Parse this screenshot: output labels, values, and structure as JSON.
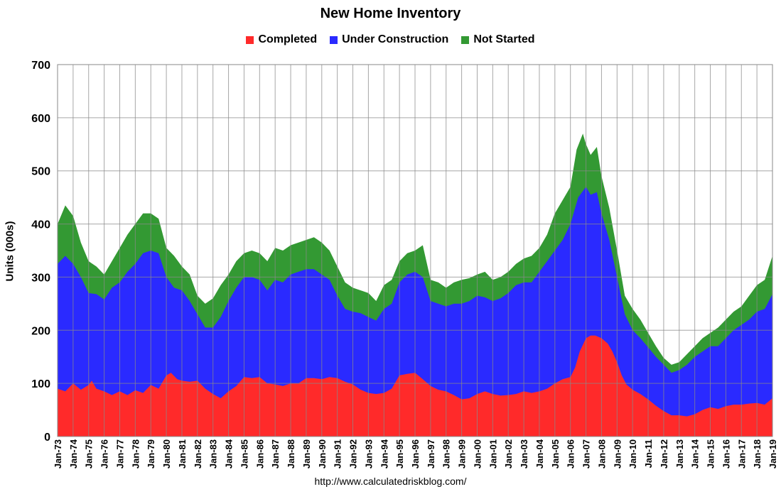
{
  "chart_data": {
    "type": "area",
    "title": "New Home Inventory",
    "ylabel": "Units (000s)",
    "xlabel": "",
    "source": "http://www.calculatedriskblog.com/",
    "ylim": [
      0,
      700
    ],
    "yticks": [
      0,
      100,
      200,
      300,
      400,
      500,
      600,
      700
    ],
    "xlim": [
      1973,
      2019
    ],
    "categories": [
      "Jan-73",
      "Jan-74",
      "Jan-75",
      "Jan-76",
      "Jan-77",
      "Jan-78",
      "Jan-79",
      "Jan-80",
      "Jan-81",
      "Jan-82",
      "Jan-83",
      "Jan-84",
      "Jan-85",
      "Jan-86",
      "Jan-87",
      "Jan-88",
      "Jan-89",
      "Jan-90",
      "Jan-91",
      "Jan-92",
      "Jan-93",
      "Jan-94",
      "Jan-95",
      "Jan-96",
      "Jan-97",
      "Jan-98",
      "Jan-99",
      "Jan-00",
      "Jan-01",
      "Jan-02",
      "Jan-03",
      "Jan-04",
      "Jan-05",
      "Jan-06",
      "Jan-07",
      "Jan-08",
      "Jan-09",
      "Jan-10",
      "Jan-11",
      "Jan-12",
      "Jan-13",
      "Jan-14",
      "Jan-15",
      "Jan-16",
      "Jan-17",
      "Jan-18",
      "Jan-19"
    ],
    "grid": true,
    "legend_position": "top",
    "stacked": true,
    "series": [
      {
        "name": "Completed",
        "color": "#ff2a2a",
        "points": [
          [
            1973.0,
            90
          ],
          [
            1973.5,
            85
          ],
          [
            1974.0,
            100
          ],
          [
            1974.5,
            88
          ],
          [
            1975.0,
            97
          ],
          [
            1975.2,
            105
          ],
          [
            1975.5,
            90
          ],
          [
            1976.0,
            85
          ],
          [
            1976.5,
            78
          ],
          [
            1977.0,
            85
          ],
          [
            1977.5,
            78
          ],
          [
            1978.0,
            87
          ],
          [
            1978.5,
            82
          ],
          [
            1979.0,
            97
          ],
          [
            1979.5,
            90
          ],
          [
            1980.0,
            115
          ],
          [
            1980.3,
            120
          ],
          [
            1980.7,
            108
          ],
          [
            1981.0,
            105
          ],
          [
            1981.5,
            103
          ],
          [
            1982.0,
            105
          ],
          [
            1982.5,
            90
          ],
          [
            1983.0,
            80
          ],
          [
            1983.5,
            72
          ],
          [
            1984.0,
            85
          ],
          [
            1984.5,
            95
          ],
          [
            1985.0,
            112
          ],
          [
            1985.5,
            110
          ],
          [
            1986.0,
            112
          ],
          [
            1986.5,
            100
          ],
          [
            1987.0,
            98
          ],
          [
            1987.5,
            95
          ],
          [
            1988.0,
            100
          ],
          [
            1988.5,
            100
          ],
          [
            1989.0,
            110
          ],
          [
            1989.5,
            110
          ],
          [
            1990.0,
            108
          ],
          [
            1990.5,
            112
          ],
          [
            1991.0,
            110
          ],
          [
            1991.5,
            103
          ],
          [
            1992.0,
            98
          ],
          [
            1992.5,
            88
          ],
          [
            1993.0,
            82
          ],
          [
            1993.5,
            80
          ],
          [
            1994.0,
            82
          ],
          [
            1994.5,
            90
          ],
          [
            1995.0,
            115
          ],
          [
            1995.5,
            118
          ],
          [
            1996.0,
            120
          ],
          [
            1996.5,
            108
          ],
          [
            1997.0,
            95
          ],
          [
            1997.5,
            88
          ],
          [
            1998.0,
            85
          ],
          [
            1998.5,
            78
          ],
          [
            1999.0,
            70
          ],
          [
            1999.5,
            72
          ],
          [
            2000.0,
            80
          ],
          [
            2000.5,
            85
          ],
          [
            2001.0,
            80
          ],
          [
            2001.5,
            77
          ],
          [
            2002.0,
            78
          ],
          [
            2002.5,
            80
          ],
          [
            2003.0,
            85
          ],
          [
            2003.5,
            82
          ],
          [
            2004.0,
            85
          ],
          [
            2004.5,
            90
          ],
          [
            2005.0,
            100
          ],
          [
            2005.5,
            108
          ],
          [
            2006.0,
            112
          ],
          [
            2006.3,
            130
          ],
          [
            2006.6,
            160
          ],
          [
            2007.0,
            185
          ],
          [
            2007.3,
            190
          ],
          [
            2007.6,
            190
          ],
          [
            2008.0,
            185
          ],
          [
            2008.4,
            175
          ],
          [
            2008.7,
            160
          ],
          [
            2009.0,
            140
          ],
          [
            2009.3,
            115
          ],
          [
            2009.6,
            98
          ],
          [
            2010.0,
            88
          ],
          [
            2010.5,
            80
          ],
          [
            2011.0,
            70
          ],
          [
            2011.5,
            58
          ],
          [
            2012.0,
            48
          ],
          [
            2012.5,
            40
          ],
          [
            2013.0,
            40
          ],
          [
            2013.5,
            38
          ],
          [
            2014.0,
            42
          ],
          [
            2014.5,
            50
          ],
          [
            2015.0,
            55
          ],
          [
            2015.5,
            52
          ],
          [
            2016.0,
            57
          ],
          [
            2016.5,
            60
          ],
          [
            2017.0,
            60
          ],
          [
            2017.5,
            62
          ],
          [
            2018.0,
            63
          ],
          [
            2018.5,
            60
          ],
          [
            2019.0,
            72
          ]
        ]
      },
      {
        "name": "Under Construction",
        "color": "#2a2aff",
        "points": [
          [
            1973.0,
            325
          ],
          [
            1973.5,
            340
          ],
          [
            1974.0,
            325
          ],
          [
            1974.5,
            300
          ],
          [
            1975.0,
            270
          ],
          [
            1975.5,
            268
          ],
          [
            1976.0,
            258
          ],
          [
            1976.5,
            280
          ],
          [
            1977.0,
            290
          ],
          [
            1977.5,
            310
          ],
          [
            1978.0,
            325
          ],
          [
            1978.5,
            345
          ],
          [
            1979.0,
            350
          ],
          [
            1979.5,
            345
          ],
          [
            1980.0,
            300
          ],
          [
            1980.5,
            280
          ],
          [
            1981.0,
            275
          ],
          [
            1981.5,
            255
          ],
          [
            1982.0,
            230
          ],
          [
            1982.5,
            205
          ],
          [
            1983.0,
            205
          ],
          [
            1983.5,
            225
          ],
          [
            1984.0,
            255
          ],
          [
            1984.5,
            280
          ],
          [
            1985.0,
            300
          ],
          [
            1985.5,
            300
          ],
          [
            1986.0,
            295
          ],
          [
            1986.5,
            275
          ],
          [
            1987.0,
            295
          ],
          [
            1987.5,
            290
          ],
          [
            1988.0,
            305
          ],
          [
            1988.5,
            310
          ],
          [
            1989.0,
            315
          ],
          [
            1989.5,
            315
          ],
          [
            1990.0,
            305
          ],
          [
            1990.5,
            295
          ],
          [
            1991.0,
            265
          ],
          [
            1991.5,
            240
          ],
          [
            1992.0,
            235
          ],
          [
            1992.5,
            232
          ],
          [
            1993.0,
            225
          ],
          [
            1993.5,
            218
          ],
          [
            1994.0,
            240
          ],
          [
            1994.5,
            250
          ],
          [
            1995.0,
            290
          ],
          [
            1995.5,
            305
          ],
          [
            1996.0,
            310
          ],
          [
            1996.5,
            300
          ],
          [
            1997.0,
            255
          ],
          [
            1997.5,
            250
          ],
          [
            1998.0,
            245
          ],
          [
            1998.5,
            250
          ],
          [
            1999.0,
            250
          ],
          [
            1999.5,
            255
          ],
          [
            2000.0,
            265
          ],
          [
            2000.5,
            262
          ],
          [
            2001.0,
            255
          ],
          [
            2001.5,
            260
          ],
          [
            2002.0,
            270
          ],
          [
            2002.5,
            285
          ],
          [
            2003.0,
            290
          ],
          [
            2003.5,
            290
          ],
          [
            2004.0,
            310
          ],
          [
            2004.5,
            330
          ],
          [
            2005.0,
            350
          ],
          [
            2005.5,
            370
          ],
          [
            2006.0,
            400
          ],
          [
            2006.5,
            450
          ],
          [
            2007.0,
            470
          ],
          [
            2007.3,
            455
          ],
          [
            2007.7,
            460
          ],
          [
            2008.0,
            420
          ],
          [
            2008.5,
            370
          ],
          [
            2009.0,
            300
          ],
          [
            2009.5,
            230
          ],
          [
            2010.0,
            200
          ],
          [
            2010.5,
            185
          ],
          [
            2011.0,
            168
          ],
          [
            2011.5,
            150
          ],
          [
            2012.0,
            135
          ],
          [
            2012.5,
            120
          ],
          [
            2013.0,
            125
          ],
          [
            2013.5,
            135
          ],
          [
            2014.0,
            150
          ],
          [
            2014.5,
            160
          ],
          [
            2015.0,
            170
          ],
          [
            2015.5,
            170
          ],
          [
            2016.0,
            185
          ],
          [
            2016.5,
            200
          ],
          [
            2017.0,
            210
          ],
          [
            2017.5,
            220
          ],
          [
            2018.0,
            235
          ],
          [
            2018.5,
            240
          ],
          [
            2019.0,
            268
          ]
        ]
      },
      {
        "name": "Not Started",
        "color": "#339933",
        "points": [
          [
            1973.0,
            400
          ],
          [
            1973.5,
            435
          ],
          [
            1974.0,
            415
          ],
          [
            1974.5,
            365
          ],
          [
            1975.0,
            330
          ],
          [
            1975.5,
            320
          ],
          [
            1976.0,
            305
          ],
          [
            1976.5,
            330
          ],
          [
            1977.0,
            355
          ],
          [
            1977.5,
            380
          ],
          [
            1978.0,
            400
          ],
          [
            1978.5,
            420
          ],
          [
            1979.0,
            420
          ],
          [
            1979.5,
            410
          ],
          [
            1980.0,
            355
          ],
          [
            1980.5,
            340
          ],
          [
            1981.0,
            320
          ],
          [
            1981.5,
            305
          ],
          [
            1982.0,
            265
          ],
          [
            1982.5,
            250
          ],
          [
            1983.0,
            260
          ],
          [
            1983.5,
            285
          ],
          [
            1984.0,
            305
          ],
          [
            1984.5,
            330
          ],
          [
            1985.0,
            345
          ],
          [
            1985.5,
            350
          ],
          [
            1986.0,
            345
          ],
          [
            1986.5,
            330
          ],
          [
            1987.0,
            355
          ],
          [
            1987.5,
            350
          ],
          [
            1988.0,
            360
          ],
          [
            1988.5,
            365
          ],
          [
            1989.0,
            370
          ],
          [
            1989.5,
            375
          ],
          [
            1990.0,
            365
          ],
          [
            1990.5,
            350
          ],
          [
            1991.0,
            320
          ],
          [
            1991.5,
            290
          ],
          [
            1992.0,
            280
          ],
          [
            1992.5,
            275
          ],
          [
            1993.0,
            270
          ],
          [
            1993.5,
            255
          ],
          [
            1994.0,
            285
          ],
          [
            1994.5,
            295
          ],
          [
            1995.0,
            330
          ],
          [
            1995.5,
            345
          ],
          [
            1996.0,
            350
          ],
          [
            1996.5,
            360
          ],
          [
            1997.0,
            295
          ],
          [
            1997.5,
            290
          ],
          [
            1998.0,
            280
          ],
          [
            1998.5,
            290
          ],
          [
            1999.0,
            295
          ],
          [
            1999.5,
            298
          ],
          [
            2000.0,
            305
          ],
          [
            2000.5,
            310
          ],
          [
            2001.0,
            295
          ],
          [
            2001.5,
            300
          ],
          [
            2002.0,
            310
          ],
          [
            2002.5,
            325
          ],
          [
            2003.0,
            335
          ],
          [
            2003.5,
            340
          ],
          [
            2004.0,
            355
          ],
          [
            2004.5,
            380
          ],
          [
            2005.0,
            420
          ],
          [
            2005.5,
            445
          ],
          [
            2006.0,
            470
          ],
          [
            2006.4,
            540
          ],
          [
            2006.8,
            570
          ],
          [
            2007.0,
            550
          ],
          [
            2007.3,
            530
          ],
          [
            2007.7,
            545
          ],
          [
            2008.0,
            490
          ],
          [
            2008.5,
            430
          ],
          [
            2009.0,
            350
          ],
          [
            2009.5,
            265
          ],
          [
            2010.0,
            240
          ],
          [
            2010.5,
            220
          ],
          [
            2011.0,
            195
          ],
          [
            2011.5,
            170
          ],
          [
            2012.0,
            148
          ],
          [
            2012.5,
            135
          ],
          [
            2013.0,
            140
          ],
          [
            2013.5,
            155
          ],
          [
            2014.0,
            170
          ],
          [
            2014.5,
            185
          ],
          [
            2015.0,
            195
          ],
          [
            2015.5,
            205
          ],
          [
            2016.0,
            220
          ],
          [
            2016.5,
            235
          ],
          [
            2017.0,
            245
          ],
          [
            2017.5,
            265
          ],
          [
            2018.0,
            285
          ],
          [
            2018.5,
            295
          ],
          [
            2019.0,
            340
          ]
        ]
      }
    ]
  }
}
